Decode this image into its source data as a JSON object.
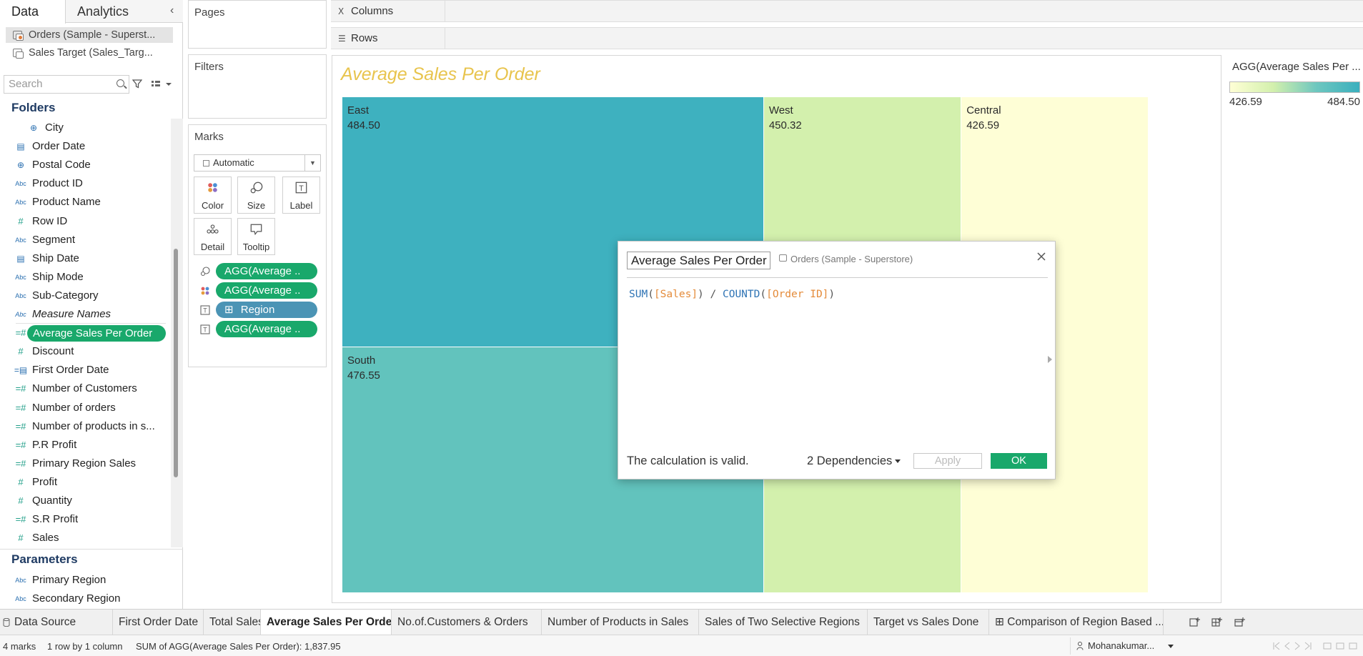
{
  "left_pane": {
    "tabs": [
      "Data",
      "Analytics"
    ],
    "data_sources": [
      "Orders (Sample - Superst...",
      "Sales Target (Sales_Targ..."
    ],
    "search_placeholder": "Search",
    "folders_title": "Folders",
    "fields": [
      {
        "name": "City",
        "type": "globe",
        "indent": true
      },
      {
        "name": "Order Date",
        "type": "cal"
      },
      {
        "name": "Postal Code",
        "type": "globe"
      },
      {
        "name": "Product ID",
        "type": "abc"
      },
      {
        "name": "Product Name",
        "type": "abc"
      },
      {
        "name": "Row ID",
        "type": "hash"
      },
      {
        "name": "Segment",
        "type": "abc"
      },
      {
        "name": "Ship Date",
        "type": "cal"
      },
      {
        "name": "Ship Mode",
        "type": "abc"
      },
      {
        "name": "Sub-Category",
        "type": "abc"
      },
      {
        "name": "Measure Names",
        "type": "abc",
        "italic": true
      },
      {
        "name": "Average Sales Per Order",
        "type": "calc-hash",
        "selected": true
      },
      {
        "name": "Discount",
        "type": "hash"
      },
      {
        "name": "First Order Date",
        "type": "calc-cal"
      },
      {
        "name": "Number of Customers",
        "type": "calc-hash"
      },
      {
        "name": "Number of orders",
        "type": "calc-hash"
      },
      {
        "name": "Number of products in s...",
        "type": "calc-hash"
      },
      {
        "name": "P.R Profit",
        "type": "calc-hash"
      },
      {
        "name": "Primary Region Sales",
        "type": "calc-hash"
      },
      {
        "name": "Profit",
        "type": "hash"
      },
      {
        "name": "Quantity",
        "type": "hash"
      },
      {
        "name": "S.R Profit",
        "type": "calc-hash"
      },
      {
        "name": "Sales",
        "type": "hash"
      }
    ],
    "parameters_title": "Parameters",
    "parameters": [
      "Primary Region",
      "Secondary Region"
    ],
    "collapse_icon": "chevron-left-icon"
  },
  "shelves": {
    "pages": "Pages",
    "filters": "Filters",
    "marks": "Marks",
    "mark_type": "Automatic",
    "mark_buttons": [
      "Color",
      "Size",
      "Label",
      "Detail",
      "Tooltip"
    ],
    "mark_pills": [
      {
        "label": "AGG(Average ..",
        "icon": "size-icon",
        "color": "green"
      },
      {
        "label": "AGG(Average ..",
        "icon": "color-icon",
        "color": "green"
      },
      {
        "label": "Region",
        "icon": "label-icon",
        "color": "blue",
        "prefix": "⊞"
      },
      {
        "label": "AGG(Average ..",
        "icon": "label-icon",
        "color": "green"
      }
    ],
    "columns": "Columns",
    "rows": "Rows"
  },
  "viz": {
    "title": "Average Sales Per Order",
    "title_color": "#e8c44d"
  },
  "chart_data": {
    "type": "treemap",
    "title": "Average Sales Per Order",
    "categories": [
      "East",
      "South",
      "West",
      "Central"
    ],
    "values": [
      484.5,
      476.55,
      450.32,
      426.59
    ],
    "value_labels": [
      "484.50",
      "476.55",
      "450.32",
      "426.59"
    ],
    "color_range": [
      426.59,
      484.5
    ],
    "colors": {
      "East": "#3eb1bf",
      "South": "#62c3bd",
      "West": "#d3f0ad",
      "Central": "#fefed6"
    }
  },
  "legend": {
    "title": "AGG(Average Sales Per ...",
    "min": "426.59",
    "max": "484.50"
  },
  "calc_dialog": {
    "name": "Average Sales Per Order",
    "data_source": "Orders (Sample - Superstore)",
    "formula": {
      "fn1": "SUM",
      "field1": "[Sales]",
      "op": " / ",
      "fn2": "COUNTD",
      "field2": "[Order ID]"
    },
    "status": "The calculation is valid.",
    "dependencies": "2 Dependencies",
    "apply": "Apply",
    "ok": "OK"
  },
  "sheet_tabs": {
    "data_source": "Data Source",
    "tabs": [
      {
        "label": "First Order Date"
      },
      {
        "label": "Total Sales"
      },
      {
        "label": "Average Sales Per Order",
        "active": true
      },
      {
        "label": "No.of.Customers & Orders"
      },
      {
        "label": "Number of Products in Sales"
      },
      {
        "label": "Sales of Two Selective Regions"
      },
      {
        "label": "Target vs Sales Done"
      },
      {
        "label": "Comparison of Region Based ..."
      }
    ]
  },
  "status_bar": {
    "marks": "4 marks",
    "dims": "1 row by 1 column",
    "summary": "SUM of AGG(Average Sales Per Order): 1,837.95",
    "user": "Mohanakumar..."
  },
  "accent": "#19a86b"
}
